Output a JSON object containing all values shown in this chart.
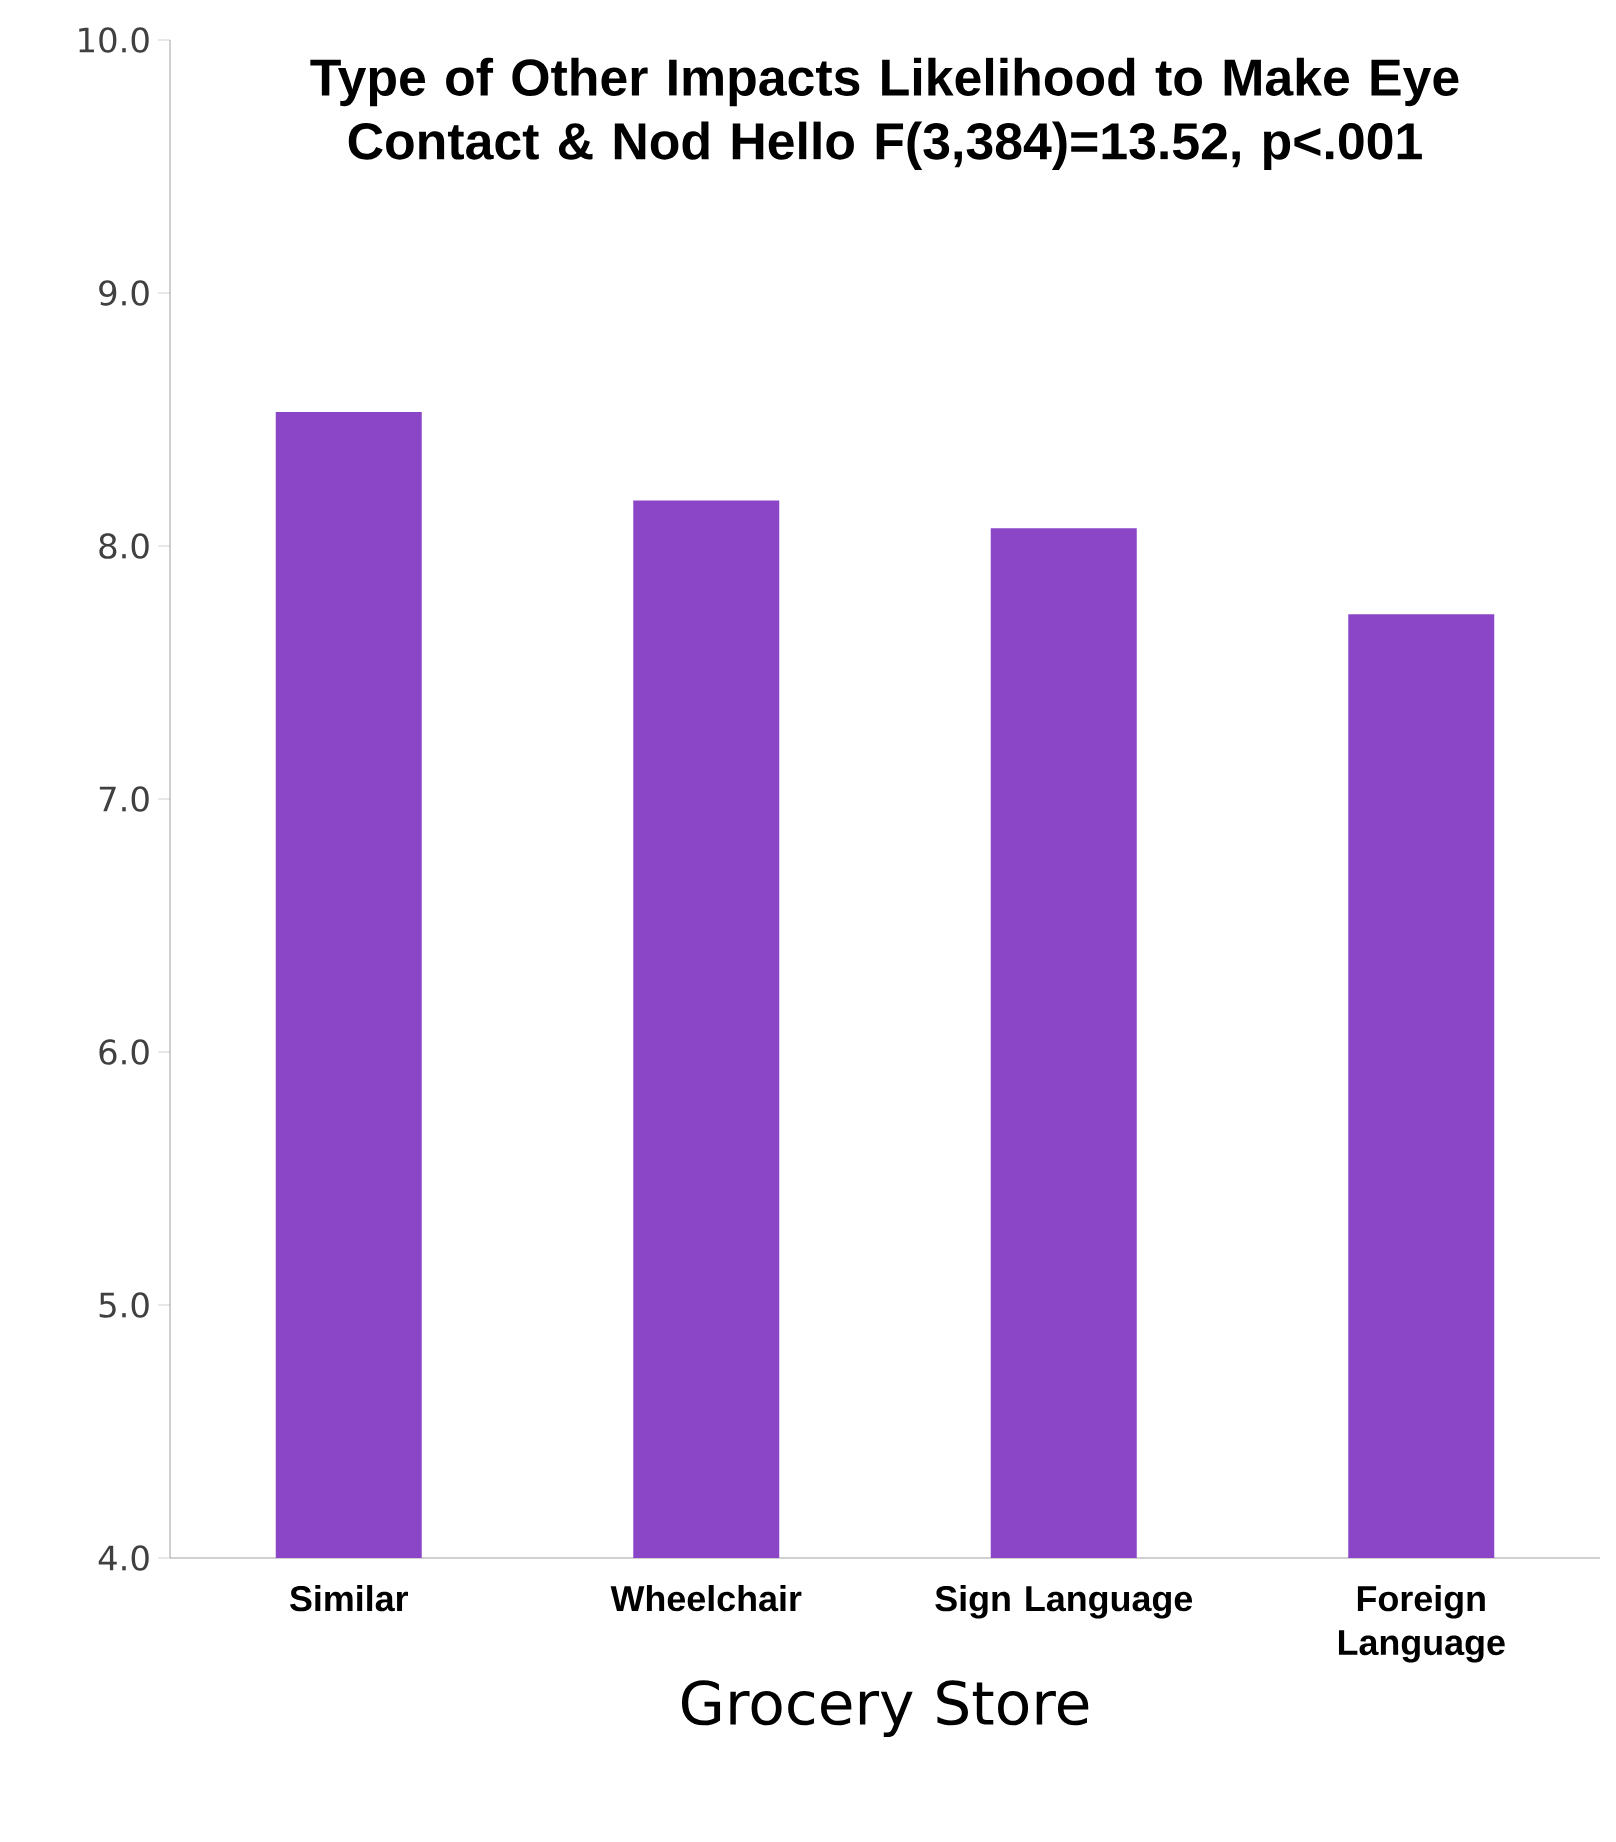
{
  "chart_data": {
    "type": "bar",
    "title": "Type of Other Impacts Likelihood to Make Eye Contact & Nod Hello F(3,384)=13.52, p<.001",
    "categories": [
      "Similar",
      "Wheelchair",
      "Sign Language",
      "Foreign Language"
    ],
    "values": [
      8.53,
      8.18,
      8.07,
      7.73
    ],
    "color": "#8b46c8",
    "xlabel": "Grocery Store",
    "ylim": [
      4,
      10
    ],
    "yticks": [
      {
        "value": 4,
        "label": "4.0"
      },
      {
        "value": 5,
        "label": "5.0"
      },
      {
        "value": 6,
        "label": "6.0"
      },
      {
        "value": 7,
        "label": "7.0"
      },
      {
        "value": 8,
        "label": "8.0"
      },
      {
        "value": 9,
        "label": "9.0"
      },
      {
        "value": 10,
        "label": "10.0"
      }
    ]
  }
}
